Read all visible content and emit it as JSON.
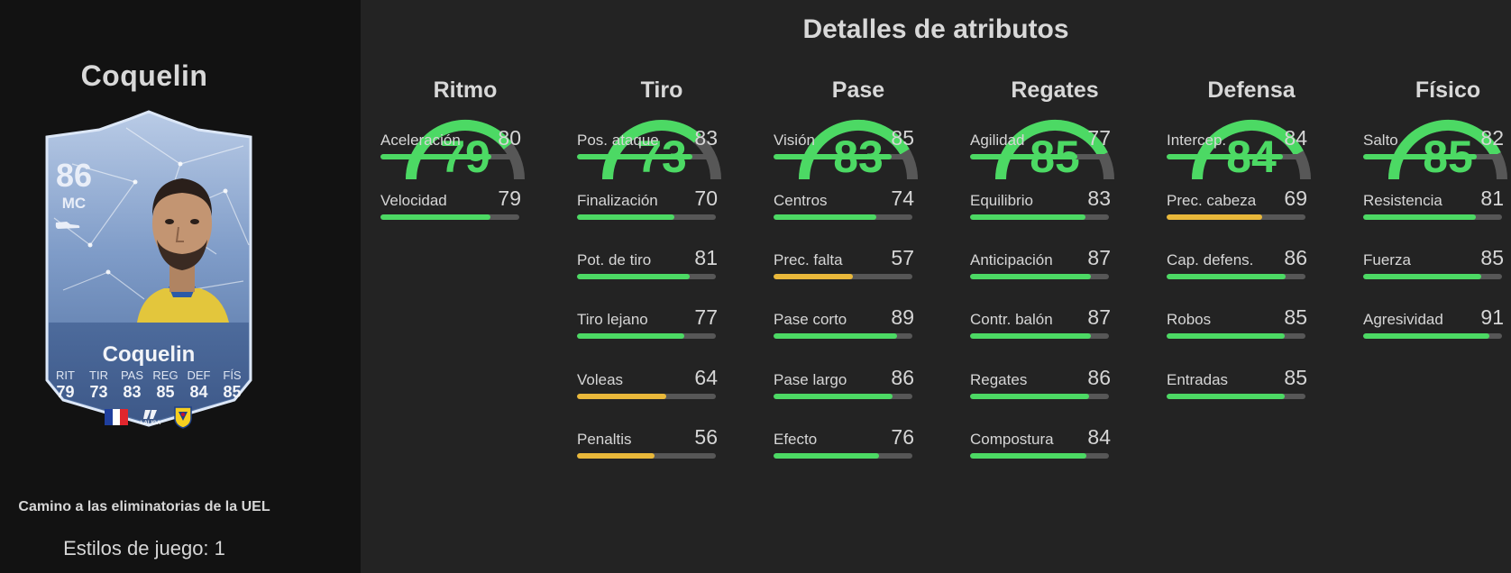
{
  "player": {
    "name": "Coquelin",
    "card": {
      "rating": "86",
      "position": "MC",
      "name": "Coquelin",
      "stat_labels": [
        "RIT",
        "TIR",
        "PAS",
        "REG",
        "DEF",
        "FÍS"
      ],
      "stat_values": [
        "79",
        "73",
        "83",
        "85",
        "84",
        "85"
      ],
      "league_label": "LALIGA"
    },
    "promo": "Camino a las eliminatorias de la UEL",
    "playstyles": "Estilos de juego: 1"
  },
  "colors": {
    "high": "#4cd964",
    "mid": "#e9b83a",
    "track": "#575757"
  },
  "attributes": {
    "title": "Detalles de atributos",
    "categories": [
      {
        "name": "Ritmo",
        "value": 79,
        "stats": [
          {
            "label": "Aceleración",
            "value": 80
          },
          {
            "label": "Velocidad",
            "value": 79
          }
        ]
      },
      {
        "name": "Tiro",
        "value": 73,
        "stats": [
          {
            "label": "Pos. ataque",
            "value": 83
          },
          {
            "label": "Finalización",
            "value": 70
          },
          {
            "label": "Pot. de tiro",
            "value": 81
          },
          {
            "label": "Tiro lejano",
            "value": 77
          },
          {
            "label": "Voleas",
            "value": 64
          },
          {
            "label": "Penaltis",
            "value": 56
          }
        ]
      },
      {
        "name": "Pase",
        "value": 83,
        "stats": [
          {
            "label": "Visión",
            "value": 85
          },
          {
            "label": "Centros",
            "value": 74
          },
          {
            "label": "Prec. falta",
            "value": 57
          },
          {
            "label": "Pase corto",
            "value": 89
          },
          {
            "label": "Pase largo",
            "value": 86
          },
          {
            "label": "Efecto",
            "value": 76
          }
        ]
      },
      {
        "name": "Regates",
        "value": 85,
        "stats": [
          {
            "label": "Agilidad",
            "value": 77
          },
          {
            "label": "Equilibrio",
            "value": 83
          },
          {
            "label": "Anticipación",
            "value": 87
          },
          {
            "label": "Contr. balón",
            "value": 87
          },
          {
            "label": "Regates",
            "value": 86
          },
          {
            "label": "Compostura",
            "value": 84
          }
        ]
      },
      {
        "name": "Defensa",
        "value": 84,
        "stats": [
          {
            "label": "Intercep.",
            "value": 84
          },
          {
            "label": "Prec. cabeza",
            "value": 69
          },
          {
            "label": "Cap. defens.",
            "value": 86
          },
          {
            "label": "Robos",
            "value": 85
          },
          {
            "label": "Entradas",
            "value": 85
          }
        ]
      },
      {
        "name": "Físico",
        "value": 85,
        "stats": [
          {
            "label": "Salto",
            "value": 82
          },
          {
            "label": "Resistencia",
            "value": 81
          },
          {
            "label": "Fuerza",
            "value": 85
          },
          {
            "label": "Agresividad",
            "value": 91
          }
        ]
      }
    ]
  }
}
